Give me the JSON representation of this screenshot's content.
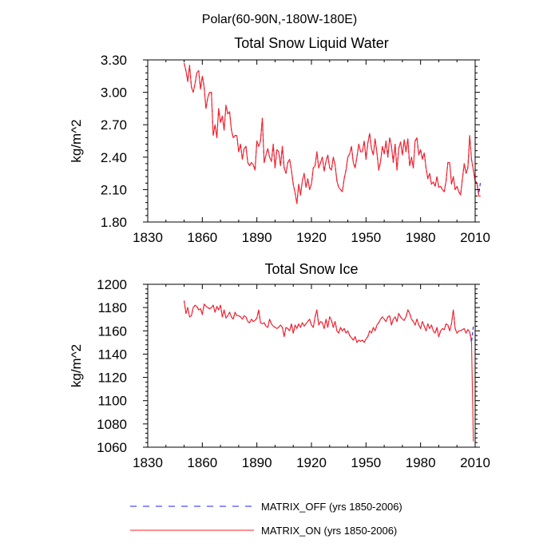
{
  "figure_title": "Polar(60-90N,-180W-180E)",
  "legend": [
    {
      "label": "MATRIX_OFF (yrs 1850-2006)",
      "color": "#1f1fff",
      "dash": true
    },
    {
      "label": "MATRIX_ON (yrs 1850-2006)",
      "color": "#ff1f1f",
      "dash": false
    }
  ],
  "chart_data": [
    {
      "type": "line",
      "title": "Total Snow Liquid Water",
      "xlabel": "",
      "ylabel": "kg/m^2",
      "xlim": [
        1830,
        2010
      ],
      "ylim": [
        1.8,
        3.3
      ],
      "x_ticks": [
        1830,
        1860,
        1890,
        1920,
        1950,
        1980,
        2010
      ],
      "y_ticks": [
        1.8,
        2.1,
        2.4,
        2.7,
        3.0,
        3.3
      ],
      "y_tick_labels": [
        "1.80",
        "2.10",
        "2.40",
        "2.70",
        "3.00",
        "3.30"
      ],
      "x_start": 1850,
      "series": [
        {
          "name": "MATRIX_OFF",
          "color": "#1f1fff",
          "dash": true,
          "values": [
            3.27,
            3.2,
            3.1,
            3.25,
            3.05,
            3.0,
            3.08,
            3.18,
            3.2,
            3.03,
            3.15,
            3.05,
            2.85,
            2.95,
            3.0,
            3.0,
            2.6,
            2.7,
            2.58,
            2.85,
            2.72,
            2.78,
            2.65,
            2.88,
            2.8,
            2.82,
            2.65,
            2.58,
            2.6,
            2.6,
            2.45,
            2.52,
            2.38,
            2.48,
            2.5,
            2.35,
            2.32,
            2.35,
            2.33,
            2.28,
            2.55,
            2.5,
            2.55,
            2.76,
            2.35,
            2.42,
            2.48,
            2.4,
            2.36,
            2.52,
            2.3,
            2.47,
            2.45,
            2.32,
            2.5,
            2.3,
            2.25,
            2.35,
            2.38,
            2.28,
            2.15,
            2.07,
            1.97,
            2.15,
            2.05,
            2.18,
            2.25,
            2.12,
            2.2,
            2.1,
            2.15,
            2.3,
            2.32,
            2.45,
            2.3,
            2.35,
            2.4,
            2.27,
            2.36,
            2.42,
            2.3,
            2.28,
            2.4,
            2.33,
            2.18,
            2.12,
            2.1,
            2.08,
            2.2,
            2.28,
            2.4,
            2.43,
            2.5,
            2.35,
            2.3,
            2.4,
            2.52,
            2.45,
            2.45,
            2.55,
            2.38,
            2.53,
            2.62,
            2.48,
            2.42,
            2.57,
            2.44,
            2.28,
            2.36,
            2.5,
            2.43,
            2.55,
            2.4,
            2.58,
            2.5,
            2.35,
            2.52,
            2.28,
            2.48,
            2.54,
            2.42,
            2.56,
            2.45,
            2.57,
            2.32,
            2.4,
            2.3,
            2.55,
            2.58,
            2.42,
            2.47,
            2.38,
            2.44,
            2.3,
            2.2,
            2.25,
            2.15,
            2.17,
            2.13,
            2.22,
            2.12,
            2.13,
            2.1,
            2.08,
            2.18,
            2.35,
            2.35,
            2.15,
            2.22,
            2.1,
            2.13,
            2.08,
            2.05,
            2.2,
            2.34,
            2.25,
            2.3,
            2.6,
            2.38,
            2.28,
            2.18,
            2.16,
            2.06,
            2.18
          ]
        },
        {
          "name": "MATRIX_ON",
          "color": "#ff1f1f",
          "dash": false,
          "values": [
            3.27,
            3.2,
            3.1,
            3.25,
            3.05,
            3.0,
            3.08,
            3.18,
            3.2,
            3.03,
            3.15,
            3.05,
            2.85,
            2.95,
            3.0,
            3.0,
            2.6,
            2.7,
            2.58,
            2.85,
            2.72,
            2.78,
            2.65,
            2.88,
            2.8,
            2.82,
            2.65,
            2.58,
            2.6,
            2.6,
            2.45,
            2.52,
            2.38,
            2.48,
            2.5,
            2.35,
            2.32,
            2.35,
            2.33,
            2.28,
            2.55,
            2.5,
            2.55,
            2.76,
            2.35,
            2.42,
            2.48,
            2.4,
            2.36,
            2.52,
            2.3,
            2.47,
            2.45,
            2.32,
            2.5,
            2.3,
            2.25,
            2.35,
            2.38,
            2.28,
            2.15,
            2.07,
            1.97,
            2.15,
            2.05,
            2.18,
            2.25,
            2.12,
            2.2,
            2.1,
            2.15,
            2.3,
            2.32,
            2.45,
            2.3,
            2.35,
            2.4,
            2.27,
            2.36,
            2.42,
            2.3,
            2.28,
            2.4,
            2.33,
            2.18,
            2.12,
            2.1,
            2.08,
            2.2,
            2.28,
            2.4,
            2.43,
            2.5,
            2.35,
            2.3,
            2.4,
            2.52,
            2.45,
            2.45,
            2.55,
            2.38,
            2.53,
            2.62,
            2.48,
            2.42,
            2.57,
            2.44,
            2.28,
            2.36,
            2.5,
            2.43,
            2.55,
            2.4,
            2.58,
            2.5,
            2.35,
            2.52,
            2.28,
            2.48,
            2.54,
            2.42,
            2.56,
            2.45,
            2.57,
            2.32,
            2.4,
            2.3,
            2.55,
            2.58,
            2.42,
            2.47,
            2.38,
            2.44,
            2.3,
            2.2,
            2.25,
            2.15,
            2.17,
            2.13,
            2.22,
            2.12,
            2.13,
            2.1,
            2.08,
            2.18,
            2.35,
            2.35,
            2.15,
            2.22,
            2.1,
            2.13,
            2.08,
            2.05,
            2.2,
            2.34,
            2.25,
            2.3,
            2.6,
            2.38,
            2.28,
            2.18,
            2.16,
            2.04,
            2.04
          ]
        }
      ]
    },
    {
      "type": "line",
      "title": "Total Snow Ice",
      "xlabel": "",
      "ylabel": "kg/m^2",
      "xlim": [
        1830,
        2010
      ],
      "ylim": [
        1060,
        1200
      ],
      "x_ticks": [
        1830,
        1860,
        1890,
        1920,
        1950,
        1980,
        2010
      ],
      "y_ticks": [
        1060,
        1080,
        1100,
        1120,
        1140,
        1160,
        1180,
        1200
      ],
      "y_tick_labels": [
        "1060",
        "1080",
        "1100",
        "1120",
        "1140",
        "1160",
        "1180",
        "1200"
      ],
      "x_start": 1850,
      "series": [
        {
          "name": "MATRIX_OFF",
          "color": "#1f1fff",
          "dash": true,
          "values": [
            1186,
            1175,
            1180,
            1172,
            1173,
            1180,
            1182,
            1181,
            1178,
            1179,
            1174,
            1183,
            1181,
            1180,
            1179,
            1180,
            1182,
            1176,
            1181,
            1178,
            1182,
            1172,
            1178,
            1171,
            1173,
            1176,
            1172,
            1170,
            1176,
            1173,
            1173,
            1172,
            1170,
            1173,
            1172,
            1168,
            1167,
            1170,
            1168,
            1169,
            1171,
            1178,
            1167,
            1166,
            1167,
            1164,
            1163,
            1170,
            1166,
            1164,
            1163,
            1162,
            1163,
            1165,
            1163,
            1155,
            1163,
            1162,
            1160,
            1166,
            1158,
            1165,
            1162,
            1166,
            1163,
            1167,
            1164,
            1166,
            1168,
            1170,
            1165,
            1163,
            1172,
            1178,
            1165,
            1168,
            1167,
            1162,
            1170,
            1163,
            1172,
            1169,
            1163,
            1168,
            1160,
            1158,
            1163,
            1160,
            1162,
            1158,
            1160,
            1156,
            1154,
            1152,
            1155,
            1150,
            1152,
            1151,
            1152,
            1150,
            1153,
            1155,
            1160,
            1158,
            1163,
            1160,
            1165,
            1167,
            1170,
            1172,
            1170,
            1168,
            1172,
            1173,
            1165,
            1170,
            1172,
            1168,
            1175,
            1172,
            1170,
            1169,
            1172,
            1178,
            1175,
            1170,
            1168,
            1165,
            1170,
            1165,
            1162,
            1168,
            1164,
            1160,
            1166,
            1162,
            1165,
            1160,
            1158,
            1163,
            1155,
            1160,
            1162,
            1161,
            1166,
            1165,
            1160,
            1166,
            1178,
            1162,
            1158,
            1160,
            1160,
            1161,
            1162,
            1158,
            1161,
            1159,
            1150,
            1164
          ]
        },
        {
          "name": "MATRIX_ON",
          "color": "#ff1f1f",
          "dash": false,
          "values": [
            1186,
            1175,
            1180,
            1172,
            1173,
            1180,
            1182,
            1181,
            1178,
            1179,
            1174,
            1183,
            1181,
            1180,
            1179,
            1180,
            1182,
            1176,
            1181,
            1178,
            1182,
            1172,
            1178,
            1171,
            1173,
            1176,
            1172,
            1170,
            1176,
            1173,
            1173,
            1172,
            1170,
            1173,
            1172,
            1168,
            1167,
            1170,
            1168,
            1169,
            1171,
            1178,
            1167,
            1166,
            1167,
            1164,
            1163,
            1170,
            1166,
            1164,
            1163,
            1162,
            1163,
            1165,
            1163,
            1155,
            1163,
            1162,
            1160,
            1166,
            1158,
            1165,
            1162,
            1166,
            1163,
            1167,
            1164,
            1166,
            1168,
            1170,
            1165,
            1163,
            1172,
            1178,
            1165,
            1168,
            1167,
            1162,
            1170,
            1163,
            1172,
            1169,
            1163,
            1168,
            1160,
            1158,
            1163,
            1160,
            1162,
            1158,
            1160,
            1156,
            1154,
            1152,
            1155,
            1150,
            1152,
            1151,
            1152,
            1150,
            1153,
            1155,
            1160,
            1158,
            1163,
            1160,
            1165,
            1167,
            1170,
            1172,
            1170,
            1168,
            1172,
            1173,
            1165,
            1170,
            1172,
            1168,
            1175,
            1172,
            1170,
            1169,
            1172,
            1178,
            1175,
            1170,
            1168,
            1165,
            1170,
            1165,
            1162,
            1168,
            1164,
            1160,
            1166,
            1162,
            1165,
            1160,
            1158,
            1163,
            1155,
            1160,
            1162,
            1161,
            1166,
            1165,
            1160,
            1166,
            1178,
            1162,
            1158,
            1160,
            1160,
            1161,
            1162,
            1158,
            1161,
            1159,
            1152,
            1065
          ]
        }
      ]
    }
  ]
}
